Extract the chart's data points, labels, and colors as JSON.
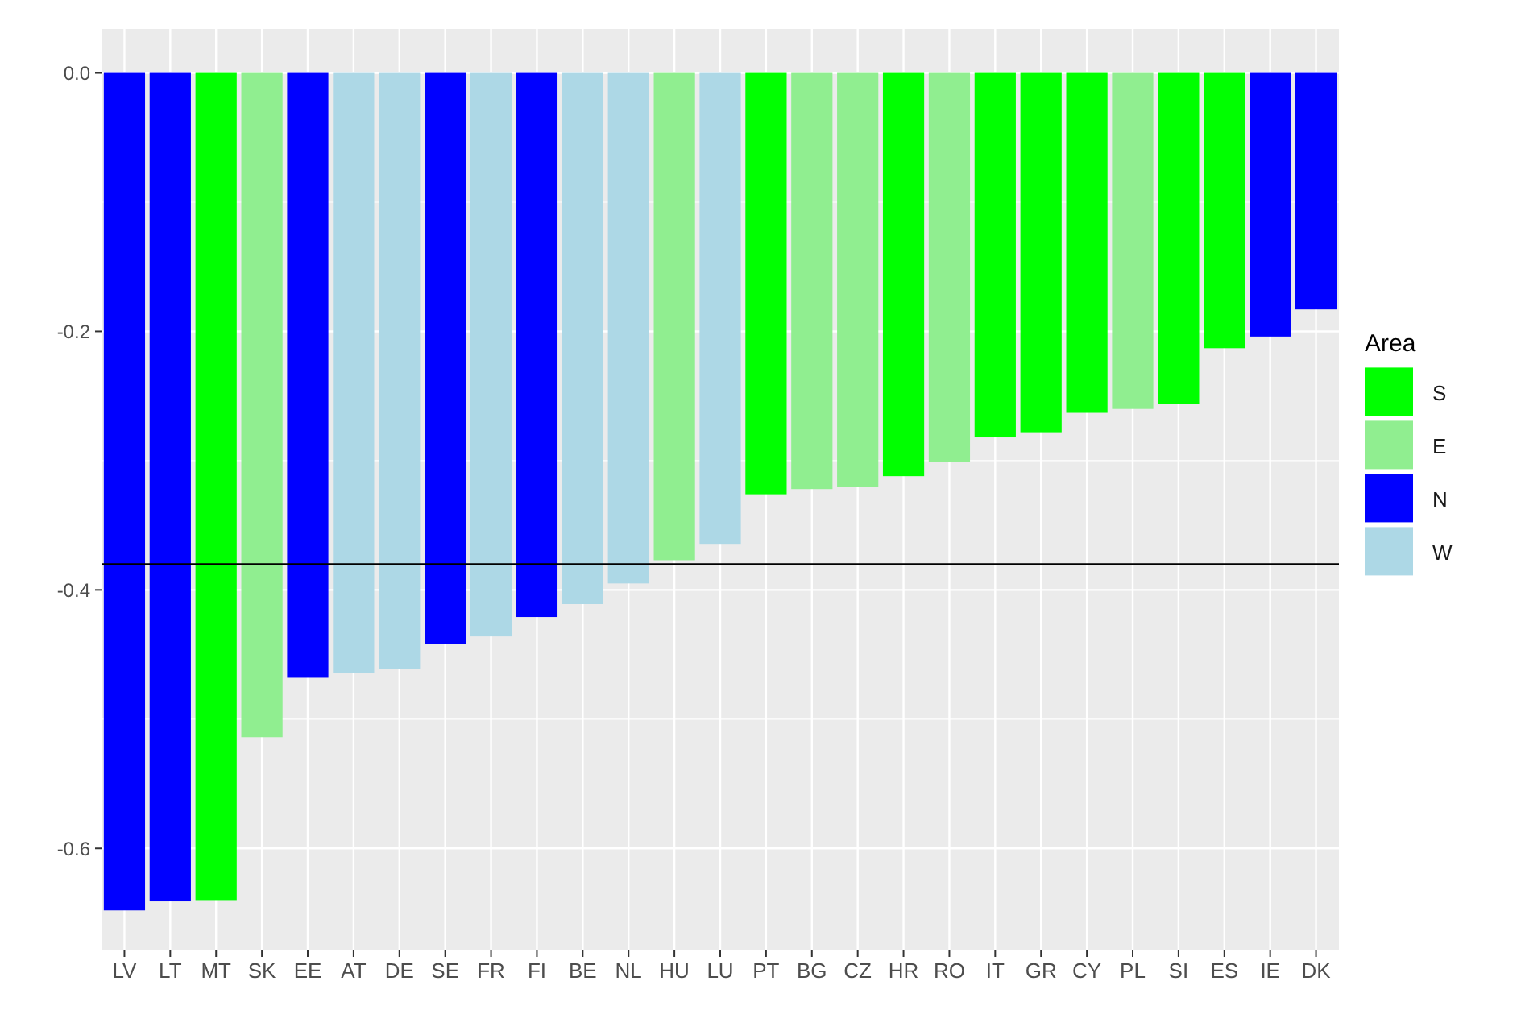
{
  "chart_data": {
    "type": "bar",
    "legend_title": "Area",
    "legend": "right",
    "grid": true,
    "categories": [
      "LV",
      "LT",
      "MT",
      "SK",
      "EE",
      "AT",
      "DE",
      "SE",
      "FR",
      "FI",
      "BE",
      "NL",
      "HU",
      "LU",
      "PT",
      "BG",
      "CZ",
      "HR",
      "RO",
      "IT",
      "GR",
      "CY",
      "PL",
      "SI",
      "ES",
      "IE",
      "DK"
    ],
    "series": [
      {
        "name": "S",
        "color": "#00ff00",
        "values": [
          null,
          null,
          -0.64,
          null,
          null,
          null,
          null,
          null,
          null,
          null,
          null,
          null,
          null,
          null,
          -0.326,
          null,
          null,
          -0.312,
          null,
          -0.282,
          -0.278,
          -0.263,
          null,
          -0.256,
          -0.213,
          null,
          null
        ]
      },
      {
        "name": "E",
        "color": "#90ee90",
        "values": [
          null,
          null,
          null,
          -0.514,
          null,
          null,
          null,
          null,
          null,
          null,
          null,
          null,
          -0.377,
          null,
          null,
          -0.322,
          -0.32,
          null,
          -0.301,
          null,
          null,
          null,
          -0.26,
          null,
          null,
          null,
          null
        ]
      },
      {
        "name": "N",
        "color": "#0000ff",
        "values": [
          -0.648,
          -0.641,
          null,
          null,
          -0.468,
          null,
          null,
          -0.442,
          null,
          -0.421,
          null,
          null,
          null,
          null,
          null,
          null,
          null,
          null,
          null,
          null,
          null,
          null,
          null,
          null,
          null,
          -0.204,
          -0.183
        ]
      },
      {
        "name": "W",
        "color": "#add8e6",
        "values": [
          null,
          null,
          null,
          null,
          null,
          -0.464,
          -0.461,
          null,
          -0.436,
          null,
          -0.411,
          -0.395,
          null,
          -0.365,
          null,
          null,
          null,
          null,
          null,
          null,
          null,
          null,
          null,
          null,
          null,
          null,
          null
        ]
      }
    ],
    "ylim": [
      -0.679,
      0.034
    ],
    "yticks": [
      {
        "value": 0,
        "label": "0.0"
      },
      -0.2,
      -0.4,
      -0.6
    ],
    "ref_lines": [
      {
        "axis": "y",
        "value": -0.38,
        "color": "#000000"
      }
    ]
  }
}
